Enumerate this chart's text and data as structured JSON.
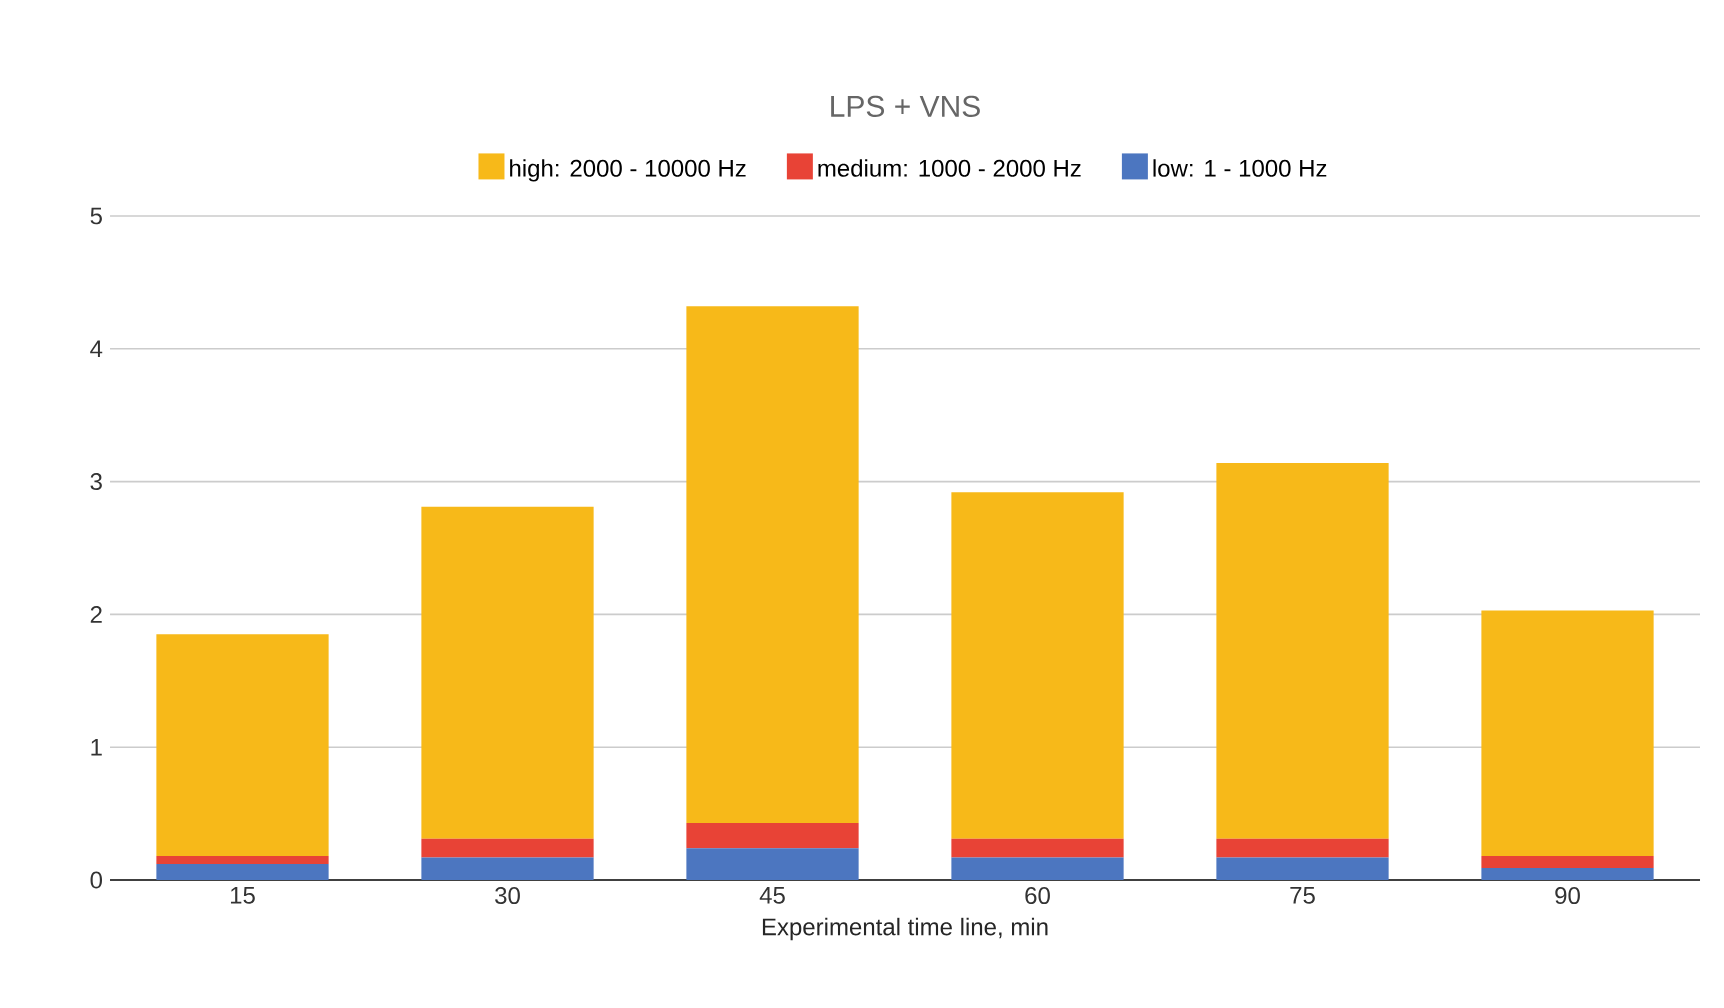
{
  "chart_data": {
    "type": "bar",
    "stacked": true,
    "title": "LPS + VNS",
    "xlabel": "Experimental time line, min",
    "categories": [
      "15",
      "30",
      "45",
      "60",
      "75",
      "90"
    ],
    "series": [
      {
        "name": "low: 1 - 1000 Hz",
        "color": "#4c76c0",
        "values": [
          0.12,
          0.17,
          0.24,
          0.17,
          0.17,
          0.09
        ]
      },
      {
        "name": "medium: 1000 - 2000 Hz",
        "color": "#e84336",
        "values": [
          0.06,
          0.14,
          0.19,
          0.14,
          0.14,
          0.09
        ]
      },
      {
        "name": "high: 2000 - 10000 Hz",
        "color": "#f7b919",
        "values": [
          1.67,
          2.5,
          3.89,
          2.61,
          2.83,
          1.85
        ]
      }
    ],
    "ylim": [
      0,
      5
    ],
    "yticks": [
      0,
      1,
      2,
      3,
      4,
      5
    ],
    "grid": "y",
    "legend": "top"
  }
}
